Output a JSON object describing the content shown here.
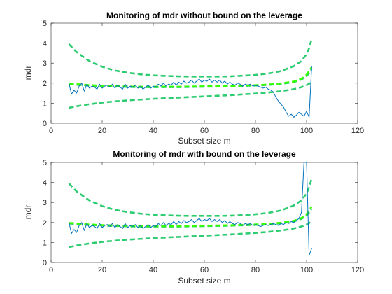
{
  "chart_data": [
    {
      "type": "line",
      "title": "Monitoring of mdr without bound on the leverage",
      "xlabel": "Subset size m",
      "ylabel": "mdr",
      "xlim": [
        0,
        120
      ],
      "ylim": [
        0,
        5
      ],
      "xticks": [
        "0",
        "20",
        "40",
        "60",
        "80",
        "100",
        "120"
      ],
      "yticks": [
        "0",
        "1",
        "2",
        "3",
        "4",
        "5"
      ],
      "grid": false,
      "legend": "none",
      "series": [
        {
          "role": "mdr",
          "color": "#0072BD",
          "style": "solid",
          "x": [
            7,
            8,
            9,
            10,
            11,
            12,
            13,
            14,
            15,
            16,
            17,
            18,
            19,
            20,
            21,
            22,
            23,
            24,
            25,
            26,
            27,
            28,
            29,
            30,
            31,
            32,
            33,
            34,
            35,
            36,
            37,
            38,
            39,
            40,
            41,
            42,
            43,
            44,
            45,
            46,
            47,
            48,
            49,
            50,
            51,
            52,
            53,
            54,
            55,
            56,
            57,
            58,
            59,
            60,
            61,
            62,
            63,
            64,
            65,
            66,
            67,
            68,
            69,
            70,
            71,
            72,
            73,
            74,
            75,
            76,
            77,
            78,
            79,
            80,
            81,
            82,
            83,
            84,
            85,
            86,
            87,
            88,
            89,
            90,
            91,
            92,
            93,
            94,
            95,
            96,
            97,
            98,
            99,
            100,
            101,
            102
          ],
          "y": [
            2.0,
            1.45,
            1.65,
            1.5,
            1.85,
            2.0,
            1.6,
            1.95,
            1.75,
            1.85,
            1.8,
            1.7,
            1.95,
            1.75,
            1.85,
            1.9,
            1.8,
            1.95,
            1.75,
            1.9,
            1.8,
            1.7,
            1.95,
            1.75,
            1.85,
            1.8,
            1.9,
            1.75,
            1.85,
            1.7,
            1.8,
            1.9,
            1.75,
            1.85,
            1.8,
            1.95,
            1.85,
            2.0,
            1.85,
            1.95,
            1.9,
            2.05,
            1.9,
            2.05,
            1.95,
            2.1,
            2.0,
            2.05,
            2.15,
            2.0,
            2.1,
            2.2,
            2.05,
            2.15,
            2.1,
            2.2,
            2.05,
            2.15,
            2.05,
            2.15,
            2.0,
            2.1,
            1.95,
            2.05,
            1.95,
            1.9,
            2.0,
            1.95,
            1.85,
            1.95,
            1.9,
            1.95,
            1.85,
            1.9,
            1.85,
            1.8,
            1.75,
            1.8,
            1.7,
            1.65,
            1.55,
            1.3,
            1.1,
            0.95,
            0.8,
            0.55,
            0.35,
            0.45,
            0.3,
            0.4,
            0.55,
            0.45,
            0.35,
            0.6,
            0.3,
            2.85
          ]
        },
        {
          "role": "band-upper",
          "color": "#2ECC71",
          "style": "dashed",
          "x": [
            7,
            10,
            15,
            20,
            25,
            30,
            35,
            40,
            45,
            50,
            55,
            60,
            65,
            70,
            75,
            80,
            85,
            90,
            95,
            98,
            100,
            101,
            102
          ],
          "y": [
            3.95,
            3.55,
            3.1,
            2.82,
            2.63,
            2.52,
            2.44,
            2.39,
            2.36,
            2.34,
            2.33,
            2.33,
            2.33,
            2.34,
            2.37,
            2.41,
            2.48,
            2.6,
            2.85,
            3.1,
            3.45,
            3.75,
            4.2
          ]
        },
        {
          "role": "band-median",
          "color": "#2ECC71",
          "style": "dashed",
          "x": [
            7,
            10,
            15,
            20,
            25,
            30,
            35,
            40,
            45,
            50,
            55,
            60,
            65,
            70,
            75,
            80,
            85,
            90,
            95,
            98,
            100,
            101,
            102
          ],
          "y": [
            1.95,
            1.92,
            1.88,
            1.85,
            1.83,
            1.81,
            1.8,
            1.8,
            1.8,
            1.8,
            1.81,
            1.82,
            1.83,
            1.84,
            1.86,
            1.88,
            1.91,
            1.96,
            2.05,
            2.18,
            2.35,
            2.5,
            2.7
          ]
        },
        {
          "role": "band-middle",
          "color": "#33FF00",
          "style": "dashed",
          "x": [
            7,
            10,
            15,
            20,
            25,
            30,
            35,
            40,
            45,
            50,
            55,
            60,
            65,
            70,
            75,
            80,
            85,
            90,
            95,
            98,
            100,
            101,
            102
          ],
          "y": [
            1.98,
            1.95,
            1.9,
            1.87,
            1.85,
            1.83,
            1.82,
            1.82,
            1.82,
            1.82,
            1.83,
            1.84,
            1.85,
            1.86,
            1.88,
            1.9,
            1.93,
            1.99,
            2.08,
            2.22,
            2.42,
            2.6,
            2.8
          ]
        },
        {
          "role": "band-lower",
          "color": "#2ECC71",
          "style": "dashed",
          "x": [
            7,
            10,
            15,
            20,
            25,
            30,
            35,
            40,
            45,
            50,
            55,
            60,
            65,
            70,
            75,
            80,
            85,
            90,
            95,
            98,
            100,
            101,
            102
          ],
          "y": [
            0.77,
            0.85,
            0.95,
            1.03,
            1.09,
            1.14,
            1.18,
            1.22,
            1.25,
            1.28,
            1.31,
            1.34,
            1.37,
            1.4,
            1.44,
            1.48,
            1.53,
            1.6,
            1.7,
            1.8,
            1.9,
            1.97,
            2.05
          ]
        }
      ]
    },
    {
      "type": "line",
      "title": "Monitoring of mdr with bound on the leverage",
      "xlabel": "Subset size m",
      "ylabel": "mdr",
      "xlim": [
        0,
        120
      ],
      "ylim": [
        0,
        5
      ],
      "xticks": [
        "0",
        "20",
        "40",
        "60",
        "80",
        "100",
        "120"
      ],
      "yticks": [
        "0",
        "1",
        "2",
        "3",
        "4",
        "5"
      ],
      "grid": false,
      "legend": "none",
      "series": [
        {
          "role": "mdr",
          "color": "#0072BD",
          "style": "solid",
          "x": [
            7,
            8,
            9,
            10,
            11,
            12,
            13,
            14,
            15,
            16,
            17,
            18,
            19,
            20,
            21,
            22,
            23,
            24,
            25,
            26,
            27,
            28,
            29,
            30,
            31,
            32,
            33,
            34,
            35,
            36,
            37,
            38,
            39,
            40,
            41,
            42,
            43,
            44,
            45,
            46,
            47,
            48,
            49,
            50,
            51,
            52,
            53,
            54,
            55,
            56,
            57,
            58,
            59,
            60,
            61,
            62,
            63,
            64,
            65,
            66,
            67,
            68,
            69,
            70,
            71,
            72,
            73,
            74,
            75,
            76,
            77,
            78,
            79,
            80,
            81,
            82,
            83,
            84,
            85,
            86,
            87,
            88,
            89,
            90,
            91,
            92,
            93,
            94,
            95,
            96,
            97,
            98,
            99,
            100,
            101,
            102
          ],
          "y": [
            2.0,
            1.45,
            1.65,
            1.5,
            1.85,
            2.0,
            1.6,
            1.95,
            1.75,
            1.85,
            1.8,
            1.7,
            1.95,
            1.75,
            1.85,
            1.9,
            1.8,
            1.95,
            1.75,
            1.9,
            1.8,
            1.7,
            1.95,
            1.75,
            1.85,
            1.8,
            1.9,
            1.75,
            1.85,
            1.7,
            1.8,
            1.9,
            1.75,
            1.85,
            1.8,
            1.95,
            1.85,
            2.0,
            1.85,
            1.95,
            1.9,
            2.05,
            1.9,
            2.05,
            1.95,
            2.1,
            2.0,
            2.05,
            2.15,
            2.0,
            2.1,
            2.2,
            2.05,
            2.15,
            2.1,
            2.2,
            2.05,
            2.15,
            2.05,
            2.15,
            2.0,
            2.1,
            1.95,
            2.05,
            1.95,
            1.9,
            2.0,
            1.95,
            1.85,
            1.95,
            1.9,
            1.95,
            1.85,
            1.9,
            1.85,
            1.8,
            1.85,
            1.9,
            1.85,
            1.9,
            1.95,
            1.9,
            1.85,
            1.95,
            1.9,
            2.0,
            1.95,
            2.05,
            2.0,
            2.1,
            2.2,
            2.5,
            5.0,
            5.0,
            0.35,
            0.7
          ]
        },
        {
          "role": "band-upper",
          "color": "#2ECC71",
          "style": "dashed",
          "x": [
            7,
            10,
            15,
            20,
            25,
            30,
            35,
            40,
            45,
            50,
            55,
            60,
            65,
            70,
            75,
            80,
            85,
            90,
            95,
            98,
            100,
            101,
            102
          ],
          "y": [
            3.95,
            3.55,
            3.1,
            2.82,
            2.63,
            2.52,
            2.44,
            2.39,
            2.36,
            2.34,
            2.33,
            2.33,
            2.33,
            2.34,
            2.37,
            2.41,
            2.48,
            2.6,
            2.85,
            3.1,
            3.45,
            3.75,
            4.2
          ]
        },
        {
          "role": "band-median",
          "color": "#2ECC71",
          "style": "dashed",
          "x": [
            7,
            10,
            15,
            20,
            25,
            30,
            35,
            40,
            45,
            50,
            55,
            60,
            65,
            70,
            75,
            80,
            85,
            90,
            95,
            98,
            100,
            101,
            102
          ],
          "y": [
            1.95,
            1.92,
            1.88,
            1.85,
            1.83,
            1.81,
            1.8,
            1.8,
            1.8,
            1.8,
            1.81,
            1.82,
            1.83,
            1.84,
            1.86,
            1.88,
            1.91,
            1.96,
            2.05,
            2.18,
            2.35,
            2.5,
            2.7
          ]
        },
        {
          "role": "band-middle",
          "color": "#33FF00",
          "style": "dashed",
          "x": [
            7,
            10,
            15,
            20,
            25,
            30,
            35,
            40,
            45,
            50,
            55,
            60,
            65,
            70,
            75,
            80,
            85,
            90,
            95,
            98,
            100,
            101,
            102
          ],
          "y": [
            1.98,
            1.95,
            1.9,
            1.87,
            1.85,
            1.83,
            1.82,
            1.82,
            1.82,
            1.82,
            1.83,
            1.84,
            1.85,
            1.86,
            1.88,
            1.9,
            1.93,
            1.99,
            2.08,
            2.22,
            2.42,
            2.6,
            2.8
          ]
        },
        {
          "role": "band-lower",
          "color": "#2ECC71",
          "style": "dashed",
          "x": [
            7,
            10,
            15,
            20,
            25,
            30,
            35,
            40,
            45,
            50,
            55,
            60,
            65,
            70,
            75,
            80,
            85,
            90,
            95,
            98,
            100,
            101,
            102
          ],
          "y": [
            0.77,
            0.85,
            0.95,
            1.03,
            1.09,
            1.14,
            1.18,
            1.22,
            1.25,
            1.28,
            1.31,
            1.34,
            1.37,
            1.4,
            1.44,
            1.48,
            1.53,
            1.6,
            1.7,
            1.8,
            1.9,
            1.97,
            2.05
          ]
        }
      ]
    }
  ]
}
